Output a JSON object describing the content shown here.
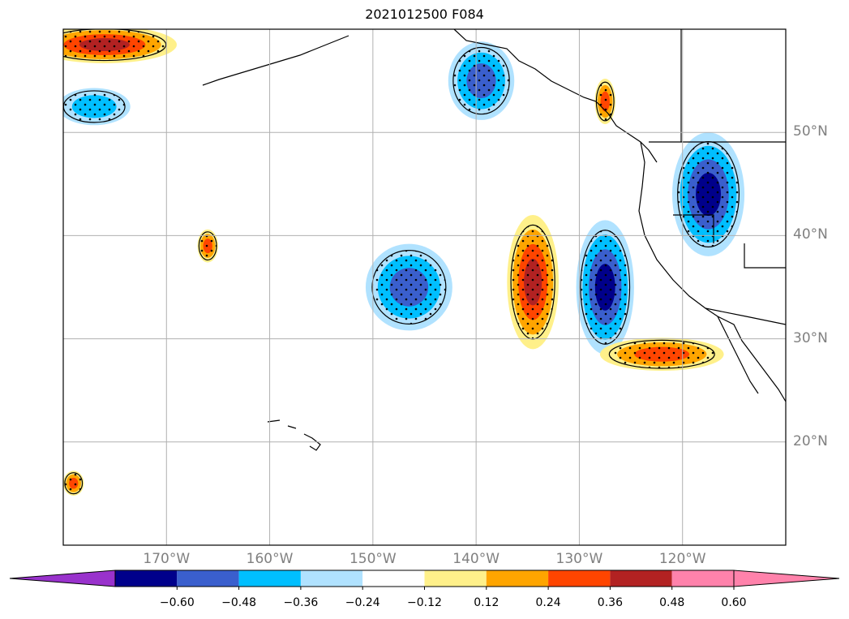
{
  "title": "2021012500 F084",
  "map": {
    "projection": "cylindrical",
    "lon_range": [
      -180,
      -110
    ],
    "lat_range": [
      10,
      60
    ],
    "grid": true,
    "lat_ticks": [
      {
        "value": 50,
        "label": "50°N"
      },
      {
        "value": 40,
        "label": "40°N"
      },
      {
        "value": 30,
        "label": "30°N"
      },
      {
        "value": 20,
        "label": "20°N"
      }
    ],
    "lon_ticks": [
      {
        "value": -170,
        "label": "170°W"
      },
      {
        "value": -160,
        "label": "160°W"
      },
      {
        "value": -150,
        "label": "150°W"
      },
      {
        "value": -140,
        "label": "140°W"
      },
      {
        "value": -130,
        "label": "130°W"
      },
      {
        "value": -120,
        "label": "120°W"
      }
    ],
    "stippling": "dots over significant regions"
  },
  "colorbar": {
    "extend": "both",
    "colors": [
      "#9932cc",
      "#00008b",
      "#3a5fcd",
      "#00bfff",
      "#b0e2ff",
      "#ffffff",
      "#fff08a",
      "#ffa500",
      "#ff4500",
      "#b22222",
      "#ff82ab",
      "#ff82ab"
    ],
    "ticks": [
      {
        "value": -0.6,
        "label": "−0.60"
      },
      {
        "value": -0.48,
        "label": "−0.48"
      },
      {
        "value": -0.36,
        "label": "−0.36"
      },
      {
        "value": -0.24,
        "label": "−0.24"
      },
      {
        "value": -0.12,
        "label": "−0.12"
      },
      {
        "value": 0.12,
        "label": "0.12"
      },
      {
        "value": 0.24,
        "label": "0.24"
      },
      {
        "value": 0.36,
        "label": "0.36"
      },
      {
        "value": 0.48,
        "label": "0.48"
      },
      {
        "value": 0.6,
        "label": "0.60"
      }
    ]
  },
  "anomalies": [
    {
      "name": "positive-anomaly-nw-corner",
      "lon": -176,
      "lat": 58.5,
      "rx": 7,
      "ry": 1.8,
      "level": 0.55
    },
    {
      "name": "negative-anomaly-far-west",
      "lon": -177,
      "lat": 52.5,
      "rx": 3.5,
      "ry": 1.8,
      "level": -0.35
    },
    {
      "name": "negative-anomaly-gulf-alaska",
      "lon": -139.5,
      "lat": 55,
      "rx": 3.2,
      "ry": 3.8,
      "level": -0.4
    },
    {
      "name": "negative-anomaly-central-pacific",
      "lon": -146.5,
      "lat": 35,
      "rx": 4.2,
      "ry": 4.2,
      "level": -0.42
    },
    {
      "name": "positive-anomaly-east-pacific",
      "lon": -134.5,
      "lat": 35.5,
      "rx": 2.5,
      "ry": 6.5,
      "level": 0.55
    },
    {
      "name": "negative-anomaly-off-california",
      "lon": -127.5,
      "lat": 35,
      "rx": 2.8,
      "ry": 6.5,
      "level": -0.55
    },
    {
      "name": "negative-anomaly-western-us",
      "lon": -117.5,
      "lat": 44,
      "rx": 3.5,
      "ry": 6,
      "level": -0.58
    },
    {
      "name": "positive-anomaly-baja-band",
      "lon": -122,
      "lat": 28.5,
      "rx": 6,
      "ry": 1.6,
      "level": 0.45
    },
    {
      "name": "positive-anomaly-small-west",
      "lon": -166,
      "lat": 39,
      "rx": 1,
      "ry": 1.6,
      "level": 0.4
    },
    {
      "name": "positive-anomaly-bc-coast",
      "lon": -127.5,
      "lat": 53,
      "rx": 1,
      "ry": 2.2,
      "level": 0.4
    },
    {
      "name": "positive-anomaly-sw-edge",
      "lon": -179,
      "lat": 16,
      "rx": 1,
      "ry": 1.2,
      "level": 0.4
    }
  ]
}
